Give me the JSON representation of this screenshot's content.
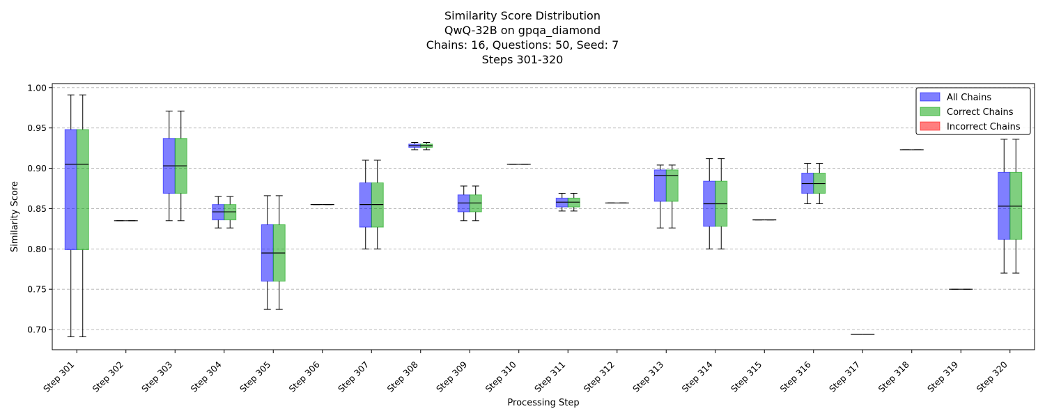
{
  "chart_data": {
    "type": "box",
    "title_lines": [
      "Similarity Score Distribution",
      "QwQ-32B on gpqa_diamond",
      "Chains: 16, Questions: 50, Seed: 7",
      "Steps 301-320"
    ],
    "xlabel": "Processing Step",
    "ylabel": "Similarity Score",
    "ylim": [
      0.675,
      1.005
    ],
    "yticks": [
      0.7,
      0.75,
      0.8,
      0.85,
      0.9,
      0.95,
      1.0
    ],
    "ytick_labels": [
      "0.70",
      "0.75",
      "0.80",
      "0.85",
      "0.90",
      "0.95",
      "1.00"
    ],
    "grid": "y-dashed",
    "legend_position": "top-right",
    "categories": [
      "Step 301",
      "Step 302",
      "Step 303",
      "Step 304",
      "Step 305",
      "Step 306",
      "Step 307",
      "Step 308",
      "Step 309",
      "Step 310",
      "Step 311",
      "Step 312",
      "Step 313",
      "Step 314",
      "Step 315",
      "Step 316",
      "Step 317",
      "Step 318",
      "Step 319",
      "Step 320"
    ],
    "series": [
      {
        "name": "All Chains",
        "color": "#0000ff",
        "stats": [
          {
            "whislo": 0.691,
            "q1": 0.799,
            "med": 0.905,
            "q3": 0.948,
            "whishi": 0.991
          },
          {
            "whislo": 0.835,
            "q1": 0.835,
            "med": 0.835,
            "q3": 0.835,
            "whishi": 0.835
          },
          {
            "whislo": 0.835,
            "q1": 0.869,
            "med": 0.903,
            "q3": 0.937,
            "whishi": 0.971
          },
          {
            "whislo": 0.826,
            "q1": 0.836,
            "med": 0.846,
            "q3": 0.855,
            "whishi": 0.865
          },
          {
            "whislo": 0.725,
            "q1": 0.76,
            "med": 0.795,
            "q3": 0.83,
            "whishi": 0.866
          },
          {
            "whislo": 0.855,
            "q1": 0.855,
            "med": 0.855,
            "q3": 0.855,
            "whishi": 0.855
          },
          {
            "whislo": 0.8,
            "q1": 0.827,
            "med": 0.855,
            "q3": 0.882,
            "whishi": 0.91
          },
          {
            "whislo": 0.923,
            "q1": 0.926,
            "med": 0.928,
            "q3": 0.93,
            "whishi": 0.932
          },
          {
            "whislo": 0.835,
            "q1": 0.846,
            "med": 0.857,
            "q3": 0.867,
            "whishi": 0.878
          },
          {
            "whislo": 0.905,
            "q1": 0.905,
            "med": 0.905,
            "q3": 0.905,
            "whishi": 0.905
          },
          {
            "whislo": 0.847,
            "q1": 0.852,
            "med": 0.858,
            "q3": 0.863,
            "whishi": 0.869
          },
          {
            "whislo": 0.857,
            "q1": 0.857,
            "med": 0.857,
            "q3": 0.857,
            "whishi": 0.857
          },
          {
            "whislo": 0.826,
            "q1": 0.859,
            "med": 0.891,
            "q3": 0.898,
            "whishi": 0.904
          },
          {
            "whislo": 0.8,
            "q1": 0.828,
            "med": 0.856,
            "q3": 0.884,
            "whishi": 0.912
          },
          {
            "whislo": 0.836,
            "q1": 0.836,
            "med": 0.836,
            "q3": 0.836,
            "whishi": 0.836
          },
          {
            "whislo": 0.856,
            "q1": 0.869,
            "med": 0.881,
            "q3": 0.894,
            "whishi": 0.906
          },
          {
            "whislo": 0.694,
            "q1": 0.694,
            "med": 0.694,
            "q3": 0.694,
            "whishi": 0.694
          },
          {
            "whislo": 0.923,
            "q1": 0.923,
            "med": 0.923,
            "q3": 0.923,
            "whishi": 0.923
          },
          {
            "whislo": 0.75,
            "q1": 0.75,
            "med": 0.75,
            "q3": 0.75,
            "whishi": 0.75
          },
          {
            "whislo": 0.77,
            "q1": 0.812,
            "med": 0.853,
            "q3": 0.895,
            "whishi": 0.936
          }
        ]
      },
      {
        "name": "Correct Chains",
        "color": "#00a000",
        "stats": [
          {
            "whislo": 0.691,
            "q1": 0.799,
            "med": 0.905,
            "q3": 0.948,
            "whishi": 0.991
          },
          {
            "whislo": 0.835,
            "q1": 0.835,
            "med": 0.835,
            "q3": 0.835,
            "whishi": 0.835
          },
          {
            "whislo": 0.835,
            "q1": 0.869,
            "med": 0.903,
            "q3": 0.937,
            "whishi": 0.971
          },
          {
            "whislo": 0.826,
            "q1": 0.836,
            "med": 0.846,
            "q3": 0.855,
            "whishi": 0.865
          },
          {
            "whislo": 0.725,
            "q1": 0.76,
            "med": 0.795,
            "q3": 0.83,
            "whishi": 0.866
          },
          {
            "whislo": 0.855,
            "q1": 0.855,
            "med": 0.855,
            "q3": 0.855,
            "whishi": 0.855
          },
          {
            "whislo": 0.8,
            "q1": 0.827,
            "med": 0.855,
            "q3": 0.882,
            "whishi": 0.91
          },
          {
            "whislo": 0.923,
            "q1": 0.926,
            "med": 0.928,
            "q3": 0.93,
            "whishi": 0.932
          },
          {
            "whislo": 0.835,
            "q1": 0.846,
            "med": 0.857,
            "q3": 0.867,
            "whishi": 0.878
          },
          {
            "whislo": 0.905,
            "q1": 0.905,
            "med": 0.905,
            "q3": 0.905,
            "whishi": 0.905
          },
          {
            "whislo": 0.847,
            "q1": 0.852,
            "med": 0.858,
            "q3": 0.863,
            "whishi": 0.869
          },
          {
            "whislo": 0.857,
            "q1": 0.857,
            "med": 0.857,
            "q3": 0.857,
            "whishi": 0.857
          },
          {
            "whislo": 0.826,
            "q1": 0.859,
            "med": 0.891,
            "q3": 0.898,
            "whishi": 0.904
          },
          {
            "whislo": 0.8,
            "q1": 0.828,
            "med": 0.856,
            "q3": 0.884,
            "whishi": 0.912
          },
          {
            "whislo": 0.836,
            "q1": 0.836,
            "med": 0.836,
            "q3": 0.836,
            "whishi": 0.836
          },
          {
            "whislo": 0.856,
            "q1": 0.869,
            "med": 0.881,
            "q3": 0.894,
            "whishi": 0.906
          },
          {
            "whislo": 0.694,
            "q1": 0.694,
            "med": 0.694,
            "q3": 0.694,
            "whishi": 0.694
          },
          {
            "whislo": 0.923,
            "q1": 0.923,
            "med": 0.923,
            "q3": 0.923,
            "whishi": 0.923
          },
          {
            "whislo": 0.75,
            "q1": 0.75,
            "med": 0.75,
            "q3": 0.75,
            "whishi": 0.75
          },
          {
            "whislo": 0.77,
            "q1": 0.812,
            "med": 0.853,
            "q3": 0.895,
            "whishi": 0.936
          }
        ]
      },
      {
        "name": "Incorrect Chains",
        "color": "#ff0000",
        "stats": []
      }
    ]
  }
}
